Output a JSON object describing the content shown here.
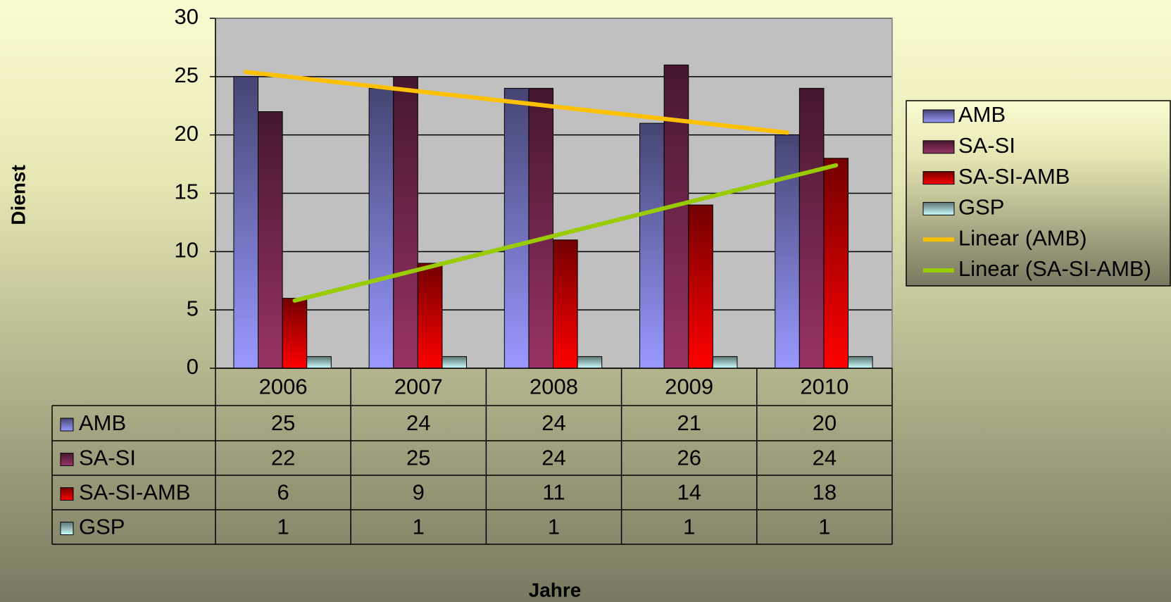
{
  "chart_data": {
    "type": "bar",
    "x_label": "Jahre",
    "y_label": "Dienst",
    "categories": [
      "2006",
      "2007",
      "2008",
      "2009",
      "2010"
    ],
    "series": [
      {
        "name": "AMB",
        "color": "#9999ff",
        "values": [
          25,
          24,
          24,
          21,
          20
        ]
      },
      {
        "name": "SA-SI",
        "color": "#993366",
        "values": [
          22,
          25,
          24,
          26,
          24
        ]
      },
      {
        "name": "SA-SI-AMB",
        "color": "#ff0000",
        "values": [
          6,
          9,
          11,
          14,
          18
        ]
      },
      {
        "name": "GSP",
        "color": "#ccffff",
        "values": [
          1,
          1,
          1,
          1,
          1
        ]
      }
    ],
    "trendlines": [
      {
        "name": "Linear (AMB)",
        "series": "AMB",
        "color": "#ffc000"
      },
      {
        "name": "Linear (SA-SI-AMB)",
        "series": "SA-SI-AMB",
        "color": "#99cc00"
      }
    ],
    "ylim": [
      0,
      30
    ],
    "yticks": [
      0,
      5,
      10,
      15,
      20,
      25,
      30
    ],
    "grid": true,
    "legend": "right",
    "data_table": true
  }
}
